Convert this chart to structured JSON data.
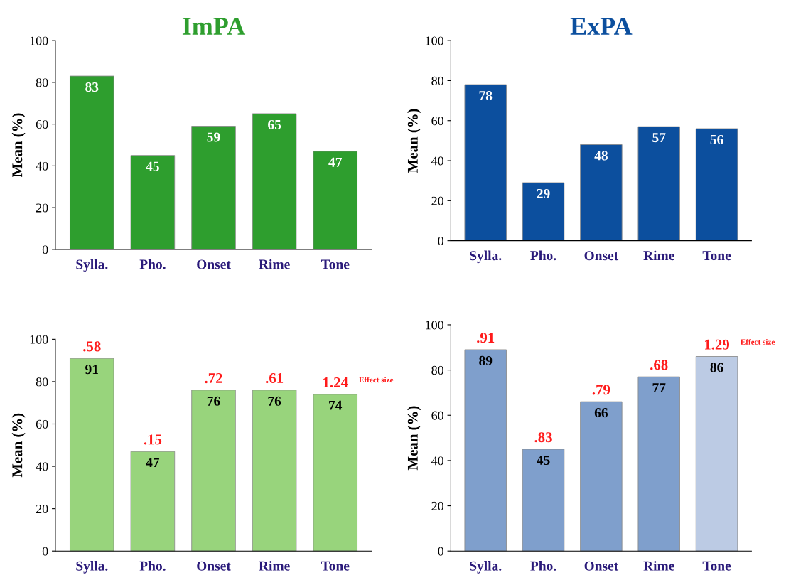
{
  "chart_data": [
    {
      "type": "bar",
      "title": "ImPA",
      "ylabel": "Mean (%)",
      "categories": [
        "Sylla.",
        "Pho.",
        "Onset",
        "Rime",
        "Tone"
      ],
      "values": [
        83,
        45,
        59,
        65,
        47
      ],
      "color": "#2e9e2e",
      "ylim": [
        0,
        100
      ],
      "yticks": [
        0,
        20,
        40,
        60,
        80,
        100
      ],
      "data_labels": true
    },
    {
      "type": "bar",
      "title": "ExPA",
      "ylabel": "Mean (%)",
      "categories": [
        "Sylla.",
        "Pho.",
        "Onset",
        "Rime",
        "Tone"
      ],
      "values": [
        78,
        29,
        48,
        57,
        56
      ],
      "color": "#0c4f9e",
      "ylim": [
        0,
        100
      ],
      "yticks": [
        0,
        20,
        40,
        60,
        80,
        100
      ],
      "data_labels": true
    },
    {
      "type": "bar",
      "ylabel": "Mean (%)",
      "categories": [
        "Sylla.",
        "Pho.",
        "Onset",
        "Rime",
        "Tone"
      ],
      "values": [
        91,
        47,
        76,
        76,
        74
      ],
      "color": "#98d47c",
      "ylim": [
        0,
        100
      ],
      "yticks": [
        0,
        20,
        40,
        60,
        80,
        100
      ],
      "data_labels": true,
      "annotations": [
        {
          "text": ".58",
          "x": "Sylla.",
          "y": 91
        },
        {
          "text": ".15",
          "x": "Pho.",
          "y": 47
        },
        {
          "text": ".72",
          "x": "Onset",
          "y": 76
        },
        {
          "text": ".61",
          "x": "Rime",
          "y": 76
        },
        {
          "text": "1.24",
          "x": "Tone",
          "y": 74
        },
        "Effect size"
      ]
    },
    {
      "type": "bar",
      "ylabel": "Mean (%)",
      "categories": [
        "Sylla.",
        "Pho.",
        "Onset",
        "Rime",
        "Tone"
      ],
      "values": [
        89,
        45,
        66,
        77,
        86
      ],
      "colors": [
        "#7f9fcc",
        "#7f9fcc",
        "#7f9fcc",
        "#7f9fcc",
        "#bccbe4"
      ],
      "ylim": [
        0,
        100
      ],
      "yticks": [
        0,
        20,
        40,
        60,
        80,
        100
      ],
      "data_labels": true,
      "annotations": [
        {
          "text": ".91",
          "x": "Sylla.",
          "y": 89
        },
        {
          "text": ".83",
          "x": "Pho.",
          "y": 45
        },
        {
          "text": ".79",
          "x": "Onset",
          "y": 66
        },
        {
          "text": ".68",
          "x": "Rime",
          "y": 77
        },
        {
          "text": "1.29",
          "x": "Tone",
          "y": 86
        },
        "Effect size"
      ]
    }
  ]
}
